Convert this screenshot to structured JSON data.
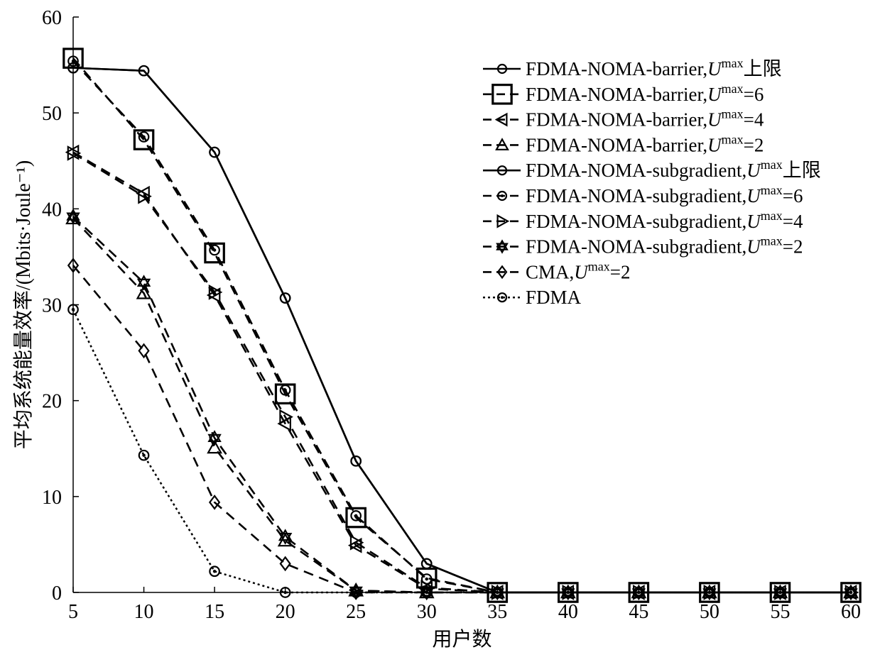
{
  "chart_data": {
    "type": "line",
    "xlabel": "用户数",
    "ylabel": "平均系统能量效率/(Mbits·Joule⁻¹)",
    "x": [
      5,
      10,
      15,
      20,
      25,
      30,
      35,
      40,
      45,
      50,
      55,
      60
    ],
    "xlim": [
      5,
      60
    ],
    "ylim": [
      0,
      60
    ],
    "xticks": [
      "5",
      "10",
      "15",
      "20",
      "25",
      "30",
      "35",
      "40",
      "45",
      "50",
      "55",
      "60"
    ],
    "yticks": [
      "0",
      "10",
      "20",
      "30",
      "40",
      "50",
      "60"
    ],
    "grid": false,
    "legend_position": "top-right",
    "series": [
      {
        "name": "FDMA-NOMA-barrier,Umax上限",
        "legend_main": "FDMA-NOMA-barrier,",
        "legend_sup": "max",
        "legend_suffix": "上限",
        "marker": "circle",
        "line_style": "solid",
        "values": [
          54.7,
          54.4,
          45.9,
          30.7,
          13.7,
          3.0,
          0,
          0,
          0,
          0,
          0,
          0
        ]
      },
      {
        "name": "FDMA-NOMA-barrier,Umax=6",
        "legend_main": "FDMA-NOMA-barrier,",
        "legend_sup": "max",
        "legend_suffix": "=6",
        "marker": "square",
        "line_style": "dashed",
        "values": [
          55.7,
          47.2,
          35.4,
          20.7,
          7.8,
          1.5,
          0,
          0,
          0,
          0,
          0,
          0
        ]
      },
      {
        "name": "FDMA-NOMA-barrier,Umax=4",
        "legend_main": "FDMA-NOMA-barrier,",
        "legend_sup": "max",
        "legend_suffix": "=4",
        "marker": "triangle-left",
        "line_style": "dashed",
        "values": [
          45.9,
          41.6,
          31.0,
          17.6,
          4.9,
          0.4,
          0,
          0,
          0,
          0,
          0,
          0
        ]
      },
      {
        "name": "FDMA-NOMA-barrier,Umax=2",
        "legend_main": "FDMA-NOMA-barrier,",
        "legend_sup": "max",
        "legend_suffix": "=2",
        "marker": "triangle-up",
        "line_style": "dashed",
        "values": [
          39.0,
          31.2,
          15.1,
          5.4,
          0.2,
          0,
          0,
          0,
          0,
          0,
          0,
          0
        ]
      },
      {
        "name": "FDMA-NOMA-subgradient,Umax上限",
        "legend_main": "FDMA-NOMA-subgradient,",
        "legend_sup": "max",
        "legend_suffix": "上限",
        "marker": "circle",
        "line_style": "solid",
        "values": [
          54.7,
          54.4,
          45.9,
          30.7,
          13.7,
          3.0,
          0,
          0,
          0,
          0,
          0,
          0
        ]
      },
      {
        "name": "FDMA-NOMA-subgradient,Umax=6",
        "legend_main": "FDMA-NOMA-subgradient,",
        "legend_sup": "max",
        "legend_suffix": "=6",
        "marker": "circle-dot",
        "line_style": "dashed",
        "values": [
          55.4,
          47.5,
          35.7,
          21.1,
          8.0,
          1.4,
          0,
          0,
          0,
          0,
          0,
          0
        ]
      },
      {
        "name": "FDMA-NOMA-subgradient,Umax=4",
        "legend_main": "FDMA-NOMA-subgradient,",
        "legend_sup": "max",
        "legend_suffix": "=4",
        "marker": "triangle-right",
        "line_style": "dashed",
        "values": [
          45.8,
          41.3,
          31.3,
          18.3,
          5.2,
          0.5,
          0,
          0,
          0,
          0,
          0,
          0
        ]
      },
      {
        "name": "FDMA-NOMA-subgradient,Umax=2",
        "legend_main": "FDMA-NOMA-subgradient,",
        "legend_sup": "max",
        "legend_suffix": "=2",
        "marker": "hexagram",
        "line_style": "dashed",
        "values": [
          39.2,
          32.3,
          16.1,
          5.8,
          0.2,
          0,
          0,
          0,
          0,
          0,
          0,
          0
        ]
      },
      {
        "name": "CMA,Umax=2",
        "legend_main": "CMA,",
        "legend_sup": "max",
        "legend_suffix": "=2",
        "marker": "diamond",
        "line_style": "dashed",
        "values": [
          34.1,
          25.2,
          9.4,
          3.0,
          0,
          0,
          0,
          0,
          0,
          0,
          0,
          0
        ]
      },
      {
        "name": "FDMA",
        "legend_main": "FDMA",
        "legend_sup": "",
        "legend_suffix": "",
        "marker": "circle-dot",
        "line_style": "dotted",
        "values": [
          29.5,
          14.3,
          2.2,
          0,
          0,
          0,
          0,
          0,
          0,
          0,
          0,
          0
        ]
      }
    ]
  }
}
